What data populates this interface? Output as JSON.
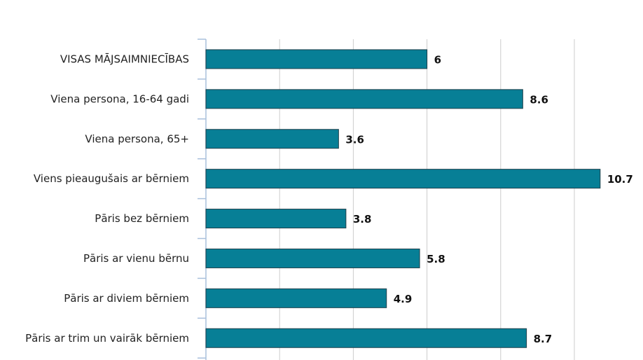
{
  "chart_data": {
    "type": "bar",
    "orientation": "horizontal",
    "categories": [
      "VISAS MĀJSAIMNIECĪBAS",
      "Viena persona, 16-64 gadi",
      "Viena persona, 65+",
      "Viens pieaugušais ar bērniem",
      "Pāris bez bērniem",
      "Pāris ar vienu bērnu",
      "Pāris ar diviem bērniem",
      "Pāris ar trim un vairāk bērniem"
    ],
    "values": [
      6,
      8.6,
      3.6,
      10.7,
      3.8,
      5.8,
      4.9,
      8.7
    ],
    "value_labels": [
      "6",
      "8.6",
      "3.6",
      "10.7",
      "3.8",
      "5.8",
      "4.9",
      "8.7"
    ],
    "title": "",
    "xlabel": "",
    "ylabel": "",
    "xlim": [
      0,
      12
    ],
    "grid": true,
    "legend": "none",
    "bar_color": "#077f96",
    "bar_edge_color": "#1f3f4a",
    "grid_color": "#cccccc",
    "axis_color": "#a9c0dc"
  }
}
